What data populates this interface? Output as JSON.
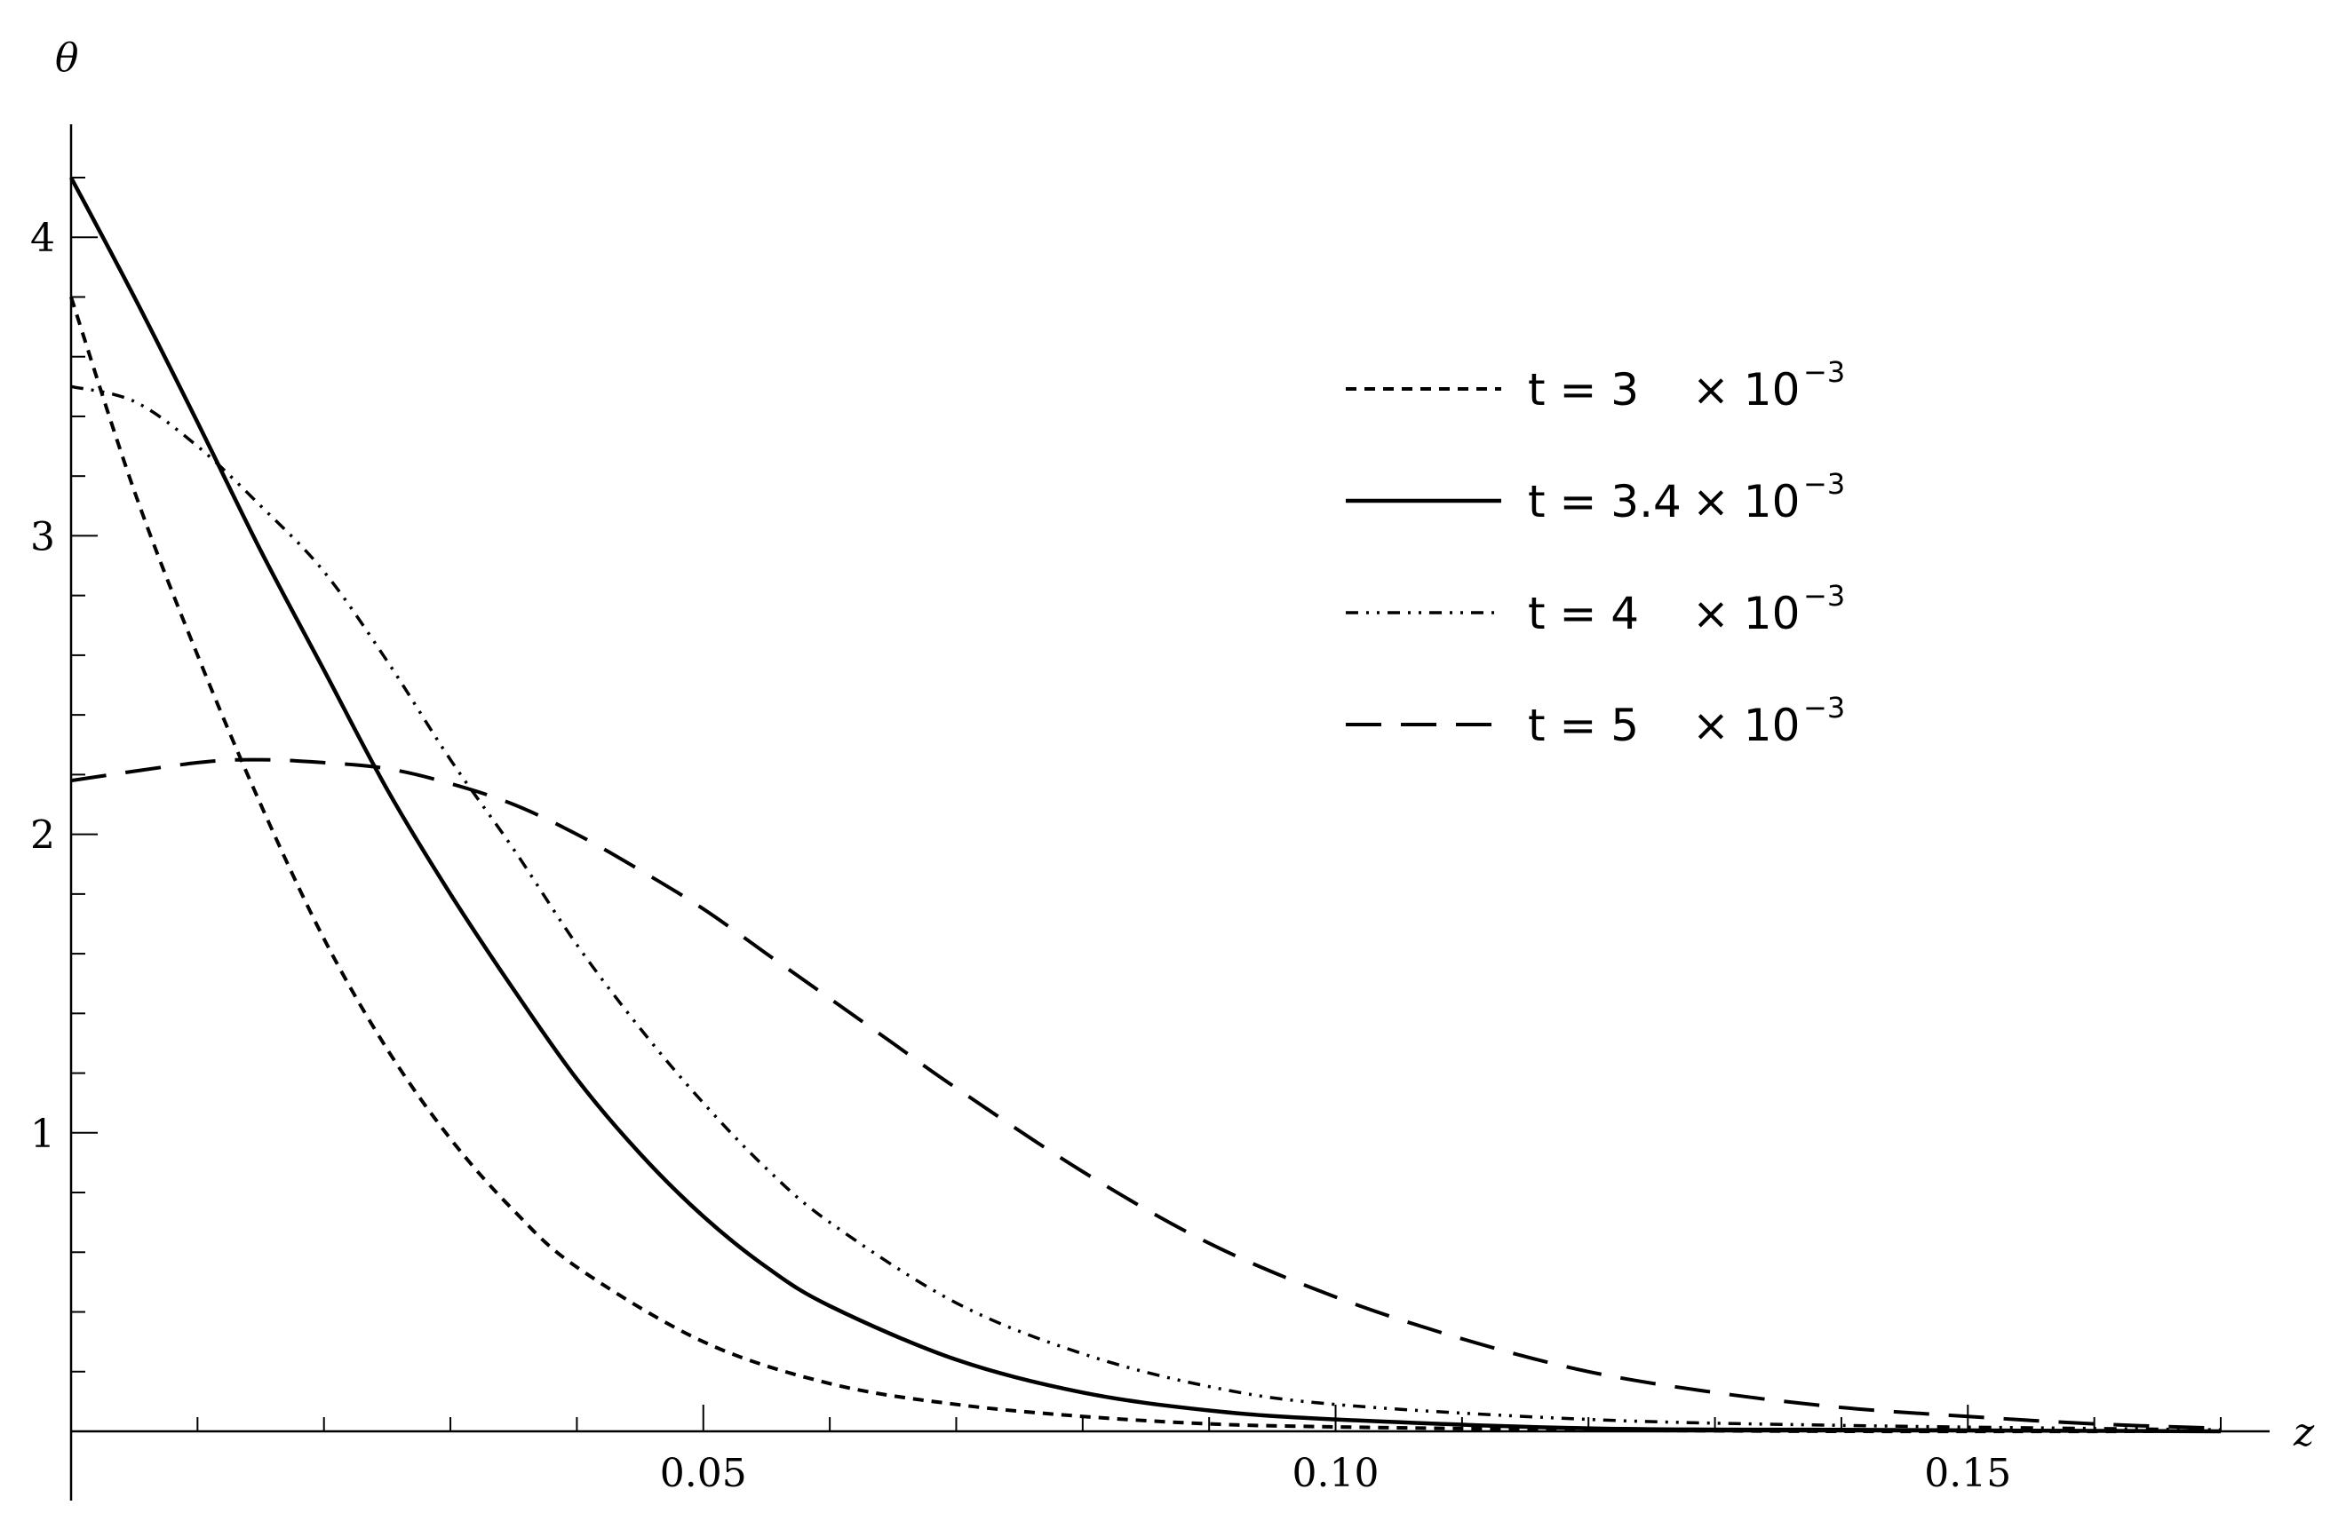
{
  "chart_data": {
    "type": "line",
    "xlabel": "z",
    "ylabel": "θ",
    "xlim": [
      0,
      0.17
    ],
    "ylim": [
      0,
      4.2
    ],
    "x_ticks": [
      {
        "value": 0.05,
        "label": "0.05"
      },
      {
        "value": 0.1,
        "label": "0.10"
      },
      {
        "value": 0.15,
        "label": "0.15"
      }
    ],
    "y_ticks": [
      {
        "value": 1,
        "label": "1"
      },
      {
        "value": 2,
        "label": "2"
      },
      {
        "value": 3,
        "label": "3"
      },
      {
        "value": 4,
        "label": "4"
      }
    ],
    "legend_position": "top-right",
    "series": [
      {
        "name": "t = 3",
        "legend_exp": "−3",
        "style": "dotted",
        "x": [
          0,
          0.005,
          0.01,
          0.015,
          0.02,
          0.025,
          0.03,
          0.035,
          0.04,
          0.05,
          0.06,
          0.07,
          0.08,
          0.09,
          0.1,
          0.12,
          0.14,
          0.17
        ],
        "y": [
          3.8,
          3.15,
          2.6,
          2.1,
          1.65,
          1.28,
          0.98,
          0.74,
          0.55,
          0.3,
          0.16,
          0.09,
          0.05,
          0.025,
          0.015,
          0.005,
          0.0,
          0.0
        ]
      },
      {
        "name": "t = 3.4",
        "legend_exp": "−3",
        "style": "solid",
        "x": [
          0,
          0.005,
          0.01,
          0.015,
          0.02,
          0.025,
          0.03,
          0.035,
          0.04,
          0.045,
          0.05,
          0.055,
          0.06,
          0.07,
          0.08,
          0.09,
          0.1,
          0.12,
          0.14,
          0.17
        ],
        "y": [
          4.2,
          3.8,
          3.38,
          2.95,
          2.55,
          2.15,
          1.8,
          1.48,
          1.18,
          0.93,
          0.72,
          0.55,
          0.42,
          0.24,
          0.13,
          0.07,
          0.04,
          0.01,
          0.005,
          0.0
        ]
      },
      {
        "name": "t = 4",
        "legend_exp": "−3",
        "style": "dash-dot",
        "x": [
          0,
          0.005,
          0.01,
          0.015,
          0.02,
          0.025,
          0.03,
          0.035,
          0.04,
          0.045,
          0.05,
          0.055,
          0.06,
          0.07,
          0.08,
          0.09,
          0.1,
          0.12,
          0.14,
          0.17
        ],
        "y": [
          3.5,
          3.45,
          3.3,
          3.1,
          2.88,
          2.58,
          2.25,
          1.95,
          1.63,
          1.35,
          1.1,
          0.88,
          0.7,
          0.43,
          0.26,
          0.15,
          0.09,
          0.04,
          0.02,
          0.005
        ]
      },
      {
        "name": "t = 5",
        "legend_exp": "−3",
        "style": "dashed",
        "x": [
          0,
          0.01,
          0.015,
          0.02,
          0.025,
          0.03,
          0.035,
          0.04,
          0.045,
          0.05,
          0.055,
          0.06,
          0.065,
          0.07,
          0.08,
          0.09,
          0.1,
          0.11,
          0.12,
          0.13,
          0.14,
          0.15,
          0.16,
          0.17
        ],
        "y": [
          2.18,
          2.24,
          2.25,
          2.24,
          2.22,
          2.17,
          2.1,
          2.0,
          1.88,
          1.75,
          1.6,
          1.45,
          1.3,
          1.15,
          0.87,
          0.63,
          0.45,
          0.31,
          0.2,
          0.13,
          0.08,
          0.05,
          0.025,
          0.01
        ]
      }
    ]
  }
}
